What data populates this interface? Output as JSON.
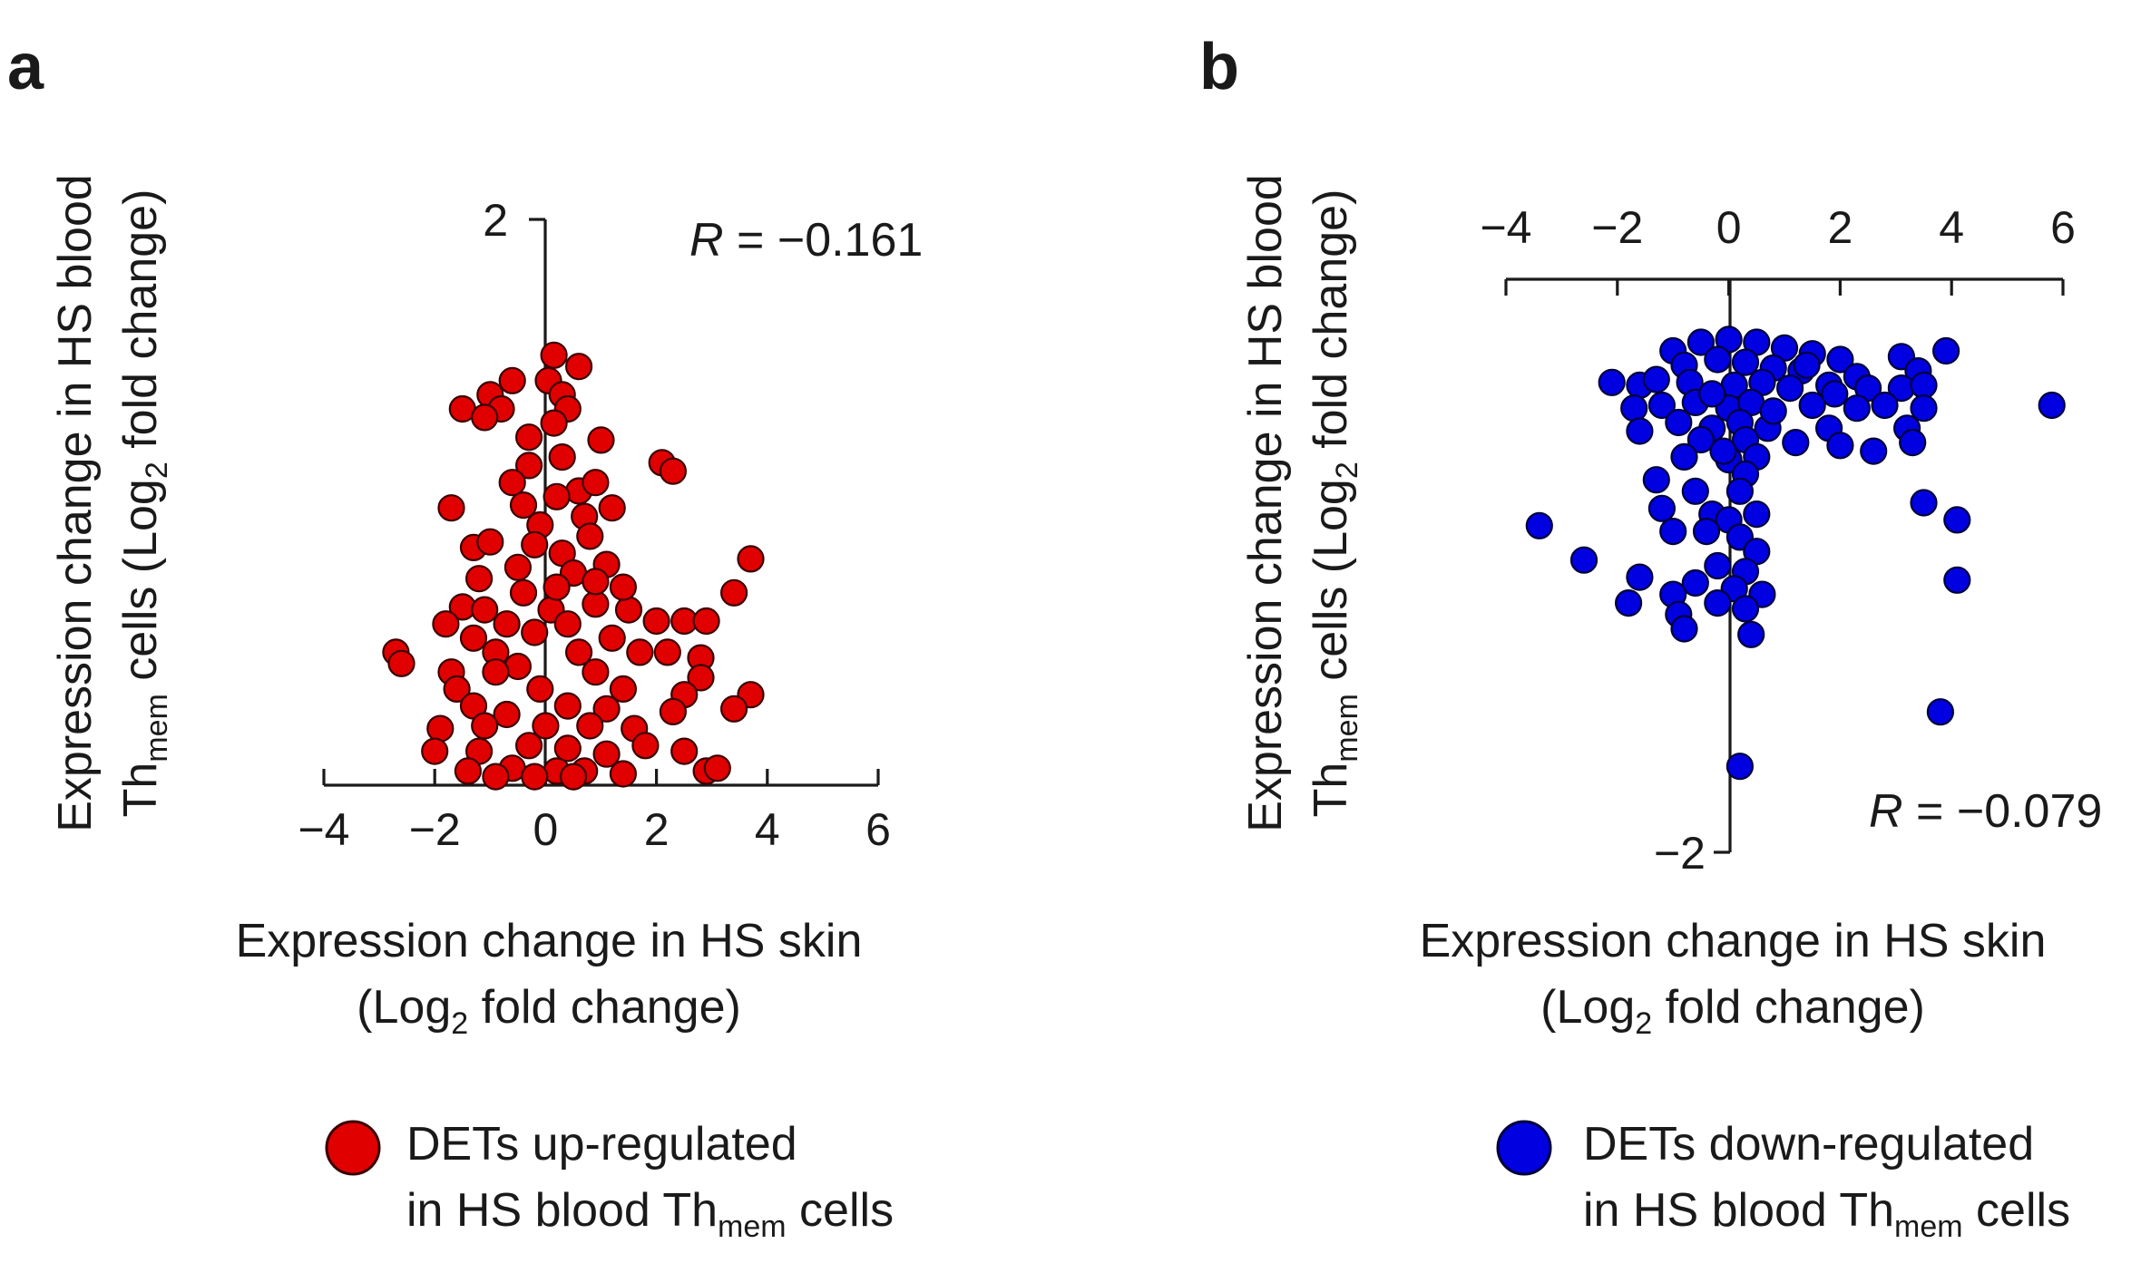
{
  "chart_data": [
    {
      "panel": "a",
      "type": "scatter",
      "xlim": [
        -4,
        6
      ],
      "xticks": [
        -4,
        -2,
        0,
        2,
        4,
        6
      ],
      "ytick_label": "2",
      "ytick_value": 2,
      "x_title": {
        "line1": "Expression change in HS skin",
        "line2_pre": "(Log",
        "line2_sub": "2",
        "line2_post": " fold change)"
      },
      "y_title": {
        "line1": "Expression change in HS blood",
        "line2_a": "Th",
        "line2_a_sub": "mem",
        "line2_b": " cells (Log",
        "line2_b_sub": "2",
        "line2_c": " fold change)"
      },
      "r_label": {
        "italic": "R",
        "value": " = −0.161"
      },
      "legend": {
        "line1": "DETs up-regulated",
        "line2_pre": "in HS blood Th",
        "line2_sub": "mem",
        "line2_post": " cells"
      },
      "colors": {
        "marker": "#e00000",
        "edge": "#3a0000"
      },
      "points": [
        [
          0.15,
          1.52
        ],
        [
          0.6,
          1.48
        ],
        [
          0.05,
          1.43
        ],
        [
          -1.0,
          1.38
        ],
        [
          -0.6,
          1.43
        ],
        [
          0.3,
          1.38
        ],
        [
          -1.5,
          1.33
        ],
        [
          -0.8,
          1.33
        ],
        [
          0.4,
          1.33
        ],
        [
          -1.1,
          1.3
        ],
        [
          0.15,
          1.28
        ],
        [
          -0.3,
          1.23
        ],
        [
          1.0,
          1.22
        ],
        [
          2.1,
          1.14
        ],
        [
          2.3,
          1.11
        ],
        [
          -0.3,
          1.13
        ],
        [
          0.3,
          1.16
        ],
        [
          -0.6,
          1.07
        ],
        [
          0.6,
          1.04
        ],
        [
          0.9,
          1.07
        ],
        [
          -1.7,
          0.98
        ],
        [
          0.2,
          1.02
        ],
        [
          -0.4,
          0.99
        ],
        [
          1.2,
          0.98
        ],
        [
          -0.1,
          0.92
        ],
        [
          0.7,
          0.95
        ],
        [
          -1.3,
          0.84
        ],
        [
          -1.0,
          0.86
        ],
        [
          -0.2,
          0.85
        ],
        [
          0.3,
          0.82
        ],
        [
          0.8,
          0.88
        ],
        [
          3.7,
          0.8
        ],
        [
          -0.5,
          0.77
        ],
        [
          0.5,
          0.75
        ],
        [
          1.1,
          0.78
        ],
        [
          3.4,
          0.68
        ],
        [
          -1.5,
          0.63
        ],
        [
          -1.1,
          0.62
        ],
        [
          0.1,
          0.62
        ],
        [
          0.9,
          0.64
        ],
        [
          1.5,
          0.62
        ],
        [
          -0.7,
          0.57
        ],
        [
          0.4,
          0.57
        ],
        [
          -1.8,
          0.57
        ],
        [
          2.0,
          0.58
        ],
        [
          2.5,
          0.58
        ],
        [
          2.9,
          0.58
        ],
        [
          -1.3,
          0.52
        ],
        [
          1.2,
          0.52
        ],
        [
          -0.2,
          0.54
        ],
        [
          -2.7,
          0.47
        ],
        [
          -2.6,
          0.43
        ],
        [
          -0.9,
          0.47
        ],
        [
          0.6,
          0.47
        ],
        [
          1.7,
          0.47
        ],
        [
          2.2,
          0.47
        ],
        [
          2.8,
          0.45
        ],
        [
          -1.7,
          0.4
        ],
        [
          -0.5,
          0.42
        ],
        [
          0.9,
          0.4
        ],
        [
          2.8,
          0.38
        ],
        [
          -1.6,
          0.34
        ],
        [
          -0.1,
          0.34
        ],
        [
          1.4,
          0.34
        ],
        [
          2.5,
          0.32
        ],
        [
          3.7,
          0.32
        ],
        [
          -1.3,
          0.28
        ],
        [
          0.4,
          0.28
        ],
        [
          1.1,
          0.27
        ],
        [
          2.3,
          0.26
        ],
        [
          3.4,
          0.27
        ],
        [
          -0.7,
          0.25
        ],
        [
          -1.9,
          0.2
        ],
        [
          -1.1,
          0.21
        ],
        [
          0.0,
          0.21
        ],
        [
          0.8,
          0.21
        ],
        [
          1.6,
          0.2
        ],
        [
          -2.0,
          0.12
        ],
        [
          -1.2,
          0.12
        ],
        [
          -0.3,
          0.14
        ],
        [
          0.4,
          0.13
        ],
        [
          1.1,
          0.11
        ],
        [
          1.8,
          0.14
        ],
        [
          2.5,
          0.12
        ],
        [
          -1.4,
          0.05
        ],
        [
          -0.6,
          0.06
        ],
        [
          0.2,
          0.05
        ],
        [
          0.7,
          0.05
        ],
        [
          1.4,
          0.04
        ],
        [
          2.9,
          0.05
        ],
        [
          3.1,
          0.06
        ],
        [
          -0.9,
          0.03
        ],
        [
          -0.2,
          0.03
        ],
        [
          0.5,
          0.03
        ],
        [
          0.9,
          0.72
        ],
        [
          -1.2,
          0.73
        ],
        [
          -0.4,
          0.68
        ],
        [
          0.2,
          0.7
        ],
        [
          1.4,
          0.7
        ],
        [
          -0.9,
          0.4
        ]
      ]
    },
    {
      "panel": "b",
      "type": "scatter",
      "xlim": [
        -4,
        6
      ],
      "xticks": [
        -4,
        -2,
        0,
        2,
        4,
        6
      ],
      "ytick_label": "−2",
      "ytick_value": -2,
      "x_title": {
        "line1": "Expression change in HS skin",
        "line2_pre": "(Log",
        "line2_sub": "2",
        "line2_post": " fold change)"
      },
      "y_title": {
        "line1": "Expression change in HS blood",
        "line2_a": "Th",
        "line2_a_sub": "mem",
        "line2_b": " cells (Log",
        "line2_b_sub": "2",
        "line2_c": " fold change)"
      },
      "r_label": {
        "italic": "R",
        "value": " = −0.079"
      },
      "legend": {
        "line1": "DETs down-regulated",
        "line2_pre": "in HS blood Th",
        "line2_sub": "mem",
        "line2_post": " cells"
      },
      "colors": {
        "marker": "#0000e0",
        "edge": "#00003a"
      },
      "points": [
        [
          -1.0,
          -0.25
        ],
        [
          -0.5,
          -0.22
        ],
        [
          0.0,
          -0.21
        ],
        [
          0.5,
          -0.22
        ],
        [
          1.0,
          -0.24
        ],
        [
          1.5,
          -0.26
        ],
        [
          2.0,
          -0.28
        ],
        [
          3.1,
          -0.27
        ],
        [
          3.9,
          -0.25
        ],
        [
          -0.8,
          -0.3
        ],
        [
          -0.2,
          -0.28
        ],
        [
          0.3,
          -0.29
        ],
        [
          0.8,
          -0.31
        ],
        [
          1.3,
          -0.32
        ],
        [
          2.3,
          -0.34
        ],
        [
          3.4,
          -0.32
        ],
        [
          -2.1,
          -0.36
        ],
        [
          -1.6,
          -0.37
        ],
        [
          -1.3,
          -0.35
        ],
        [
          -0.7,
          -0.36
        ],
        [
          0.1,
          -0.37
        ],
        [
          0.6,
          -0.36
        ],
        [
          1.1,
          -0.38
        ],
        [
          1.8,
          -0.37
        ],
        [
          2.5,
          -0.38
        ],
        [
          3.1,
          -0.38
        ],
        [
          3.5,
          -0.37
        ],
        [
          5.8,
          -0.44
        ],
        [
          -1.7,
          -0.45
        ],
        [
          -1.2,
          -0.44
        ],
        [
          -0.6,
          -0.43
        ],
        [
          0.0,
          -0.45
        ],
        [
          0.4,
          -0.43
        ],
        [
          1.5,
          -0.44
        ],
        [
          2.3,
          -0.45
        ],
        [
          2.8,
          -0.44
        ],
        [
          3.5,
          -0.45
        ],
        [
          -0.9,
          -0.5
        ],
        [
          -0.3,
          -0.52
        ],
        [
          0.2,
          -0.5
        ],
        [
          0.7,
          -0.52
        ],
        [
          1.8,
          -0.52
        ],
        [
          3.2,
          -0.52
        ],
        [
          -1.6,
          -0.53
        ],
        [
          -0.5,
          -0.56
        ],
        [
          0.3,
          -0.56
        ],
        [
          1.2,
          -0.57
        ],
        [
          2.0,
          -0.58
        ],
        [
          2.6,
          -0.6
        ],
        [
          3.3,
          -0.57
        ],
        [
          -0.8,
          -0.62
        ],
        [
          0.0,
          -0.63
        ],
        [
          0.5,
          -0.62
        ],
        [
          -1.3,
          -0.7
        ],
        [
          0.3,
          -0.68
        ],
        [
          -0.6,
          -0.74
        ],
        [
          0.2,
          -0.74
        ],
        [
          3.5,
          -0.78
        ],
        [
          -1.2,
          -0.8
        ],
        [
          -0.3,
          -0.82
        ],
        [
          0.0,
          -0.84
        ],
        [
          0.5,
          -0.82
        ],
        [
          4.1,
          -0.84
        ],
        [
          -3.4,
          -0.86
        ],
        [
          -1.0,
          -0.88
        ],
        [
          -0.4,
          -0.88
        ],
        [
          0.2,
          -0.9
        ],
        [
          0.5,
          -0.95
        ],
        [
          -2.6,
          -0.98
        ],
        [
          -0.2,
          -1.0
        ],
        [
          0.3,
          -1.02
        ],
        [
          -1.6,
          -1.04
        ],
        [
          4.1,
          -1.05
        ],
        [
          -0.6,
          -1.06
        ],
        [
          0.1,
          -1.08
        ],
        [
          -1.0,
          -1.1
        ],
        [
          0.6,
          -1.1
        ],
        [
          -1.8,
          -1.13
        ],
        [
          -0.2,
          -1.13
        ],
        [
          -0.9,
          -1.17
        ],
        [
          0.3,
          -1.15
        ],
        [
          -0.8,
          -1.22
        ],
        [
          0.4,
          -1.24
        ],
        [
          3.8,
          -1.51
        ],
        [
          0.2,
          -1.7
        ],
        [
          -0.3,
          -0.4
        ],
        [
          0.8,
          -0.46
        ],
        [
          1.9,
          -0.4
        ],
        [
          -0.1,
          -0.6
        ],
        [
          1.4,
          -0.3
        ]
      ]
    }
  ]
}
